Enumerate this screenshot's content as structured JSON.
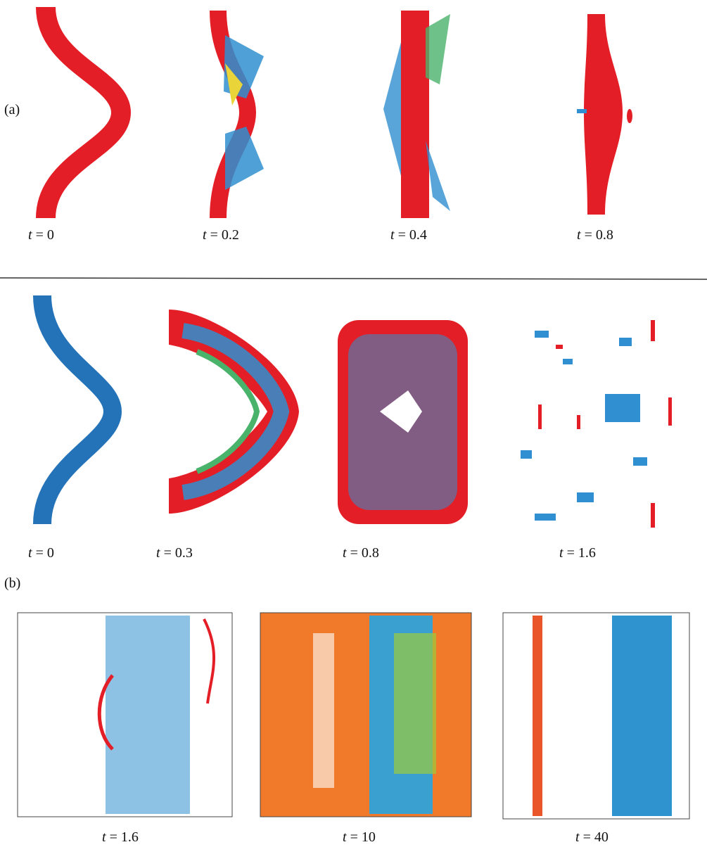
{
  "panel_a": {
    "letter": "(a)",
    "labels": [
      {
        "symbol": "t",
        "value": "= 0"
      },
      {
        "symbol": "t",
        "value": "= 0.2"
      },
      {
        "symbol": "t",
        "value": "= 0.4"
      },
      {
        "symbol": "t",
        "value": "= 0.8"
      }
    ]
  },
  "panel_b": {
    "letter": "(b)",
    "row1_labels": [
      {
        "symbol": "t",
        "value": "= 0"
      },
      {
        "symbol": "t",
        "value": "= 0.3"
      },
      {
        "symbol": "t",
        "value": "= 0.8"
      },
      {
        "symbol": "t",
        "value": "= 1.6"
      }
    ],
    "row2_labels": [
      {
        "symbol": "t",
        "value": "= 1.6"
      },
      {
        "symbol": "t",
        "value": "= 10"
      },
      {
        "symbol": "t",
        "value": "= 40"
      }
    ]
  }
}
